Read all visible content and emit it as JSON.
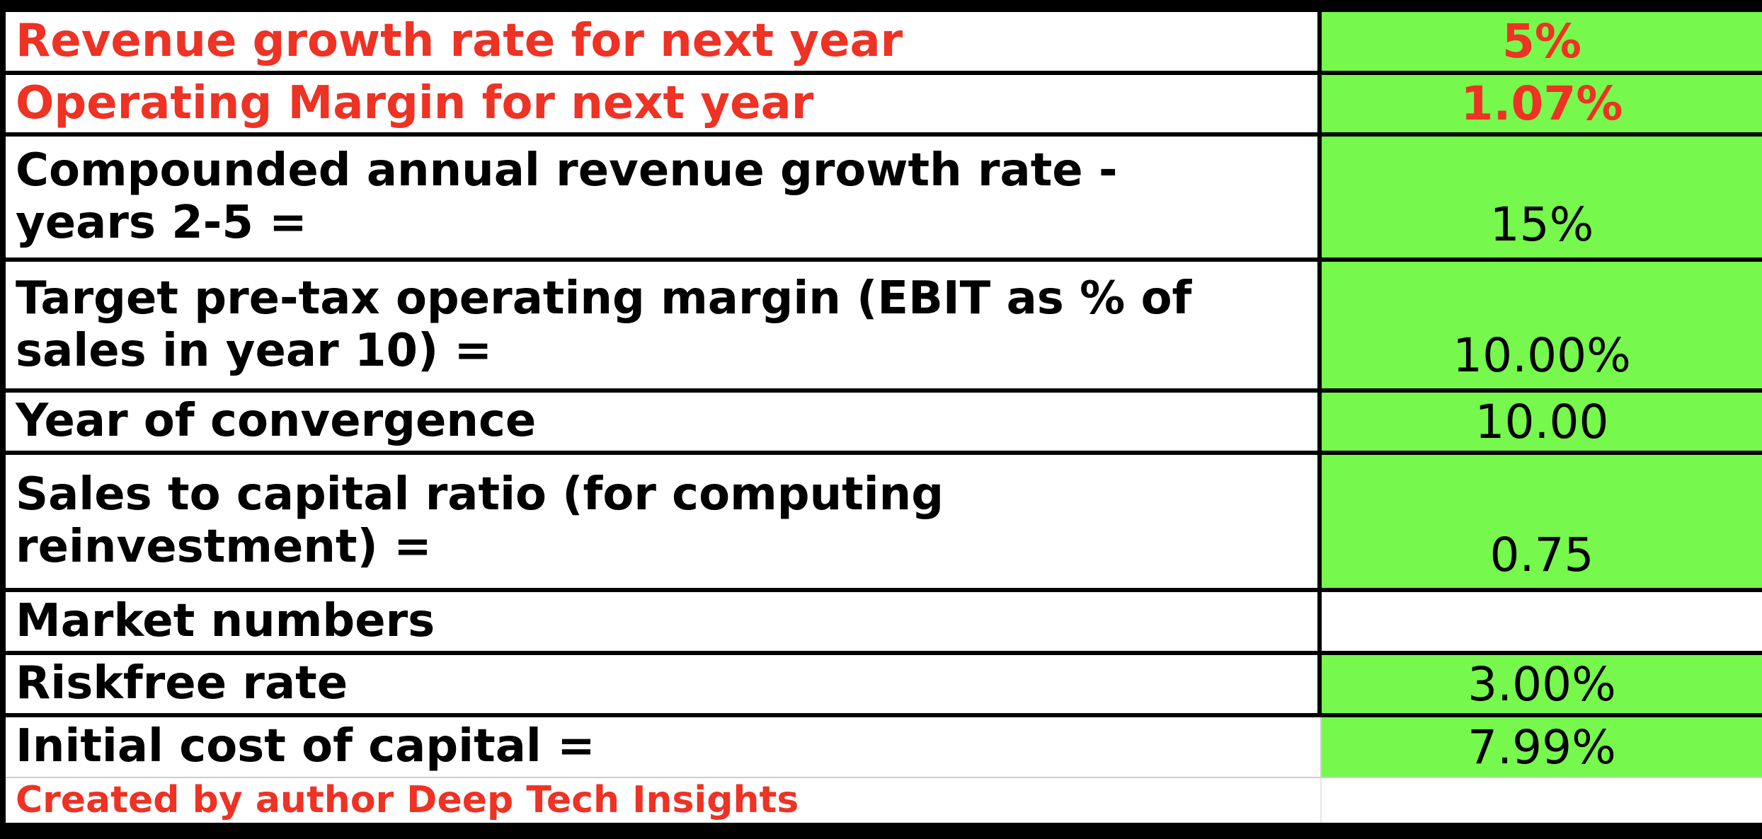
{
  "rows": [
    {
      "label": "Revenue growth rate for next year",
      "value": "5%"
    },
    {
      "label": "Operating Margin for next year",
      "value": "1.07%"
    },
    {
      "label": "Compounded annual revenue growth rate -\nyears 2-5 =",
      "value": "15%"
    },
    {
      "label": "Target pre-tax operating margin (EBIT as % of\nsales in year 10) =",
      "value": "10.00%"
    },
    {
      "label": "Year of convergence",
      "value": "10.00"
    },
    {
      "label": "Sales to capital ratio  (for computing\nreinvestment) =",
      "value": "0.75"
    },
    {
      "label": "Market numbers",
      "value": ""
    },
    {
      "label": "Riskfree rate",
      "value": "3.00%"
    },
    {
      "label": "Initial cost of capital =",
      "value": "7.99%"
    }
  ],
  "footer": {
    "credit": "Created by author Deep Tech Insights"
  },
  "colors": {
    "highlight_green": "#76f84c",
    "accent_red": "#ee3224",
    "border": "#000000"
  }
}
